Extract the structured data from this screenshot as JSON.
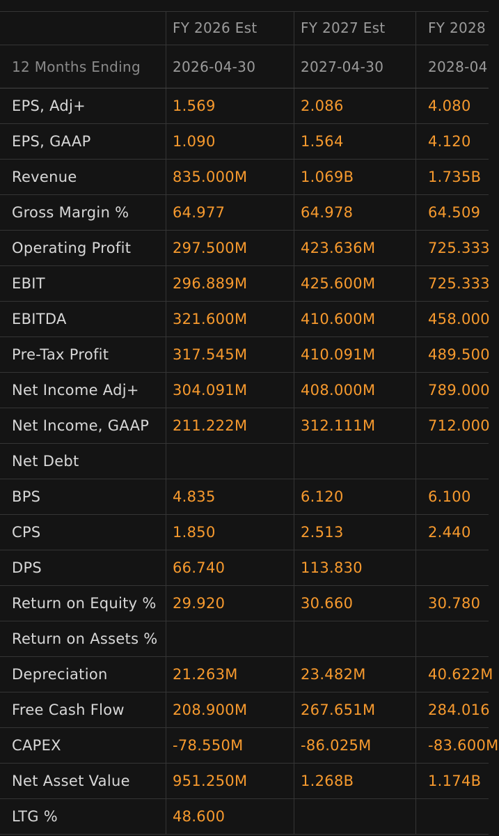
{
  "header": {
    "period_label": "",
    "columns": [
      "FY 2026 Est",
      "FY 2027 Est",
      "FY 2028"
    ],
    "ending_label": "12 Months Ending",
    "ending_dates": [
      "2026-04-30",
      "2027-04-30",
      "2028-04"
    ]
  },
  "rows": [
    {
      "label": "EPS, Adj+",
      "values": [
        "1.569",
        "2.086",
        "4.080"
      ]
    },
    {
      "label": "EPS, GAAP",
      "values": [
        "1.090",
        "1.564",
        "4.120"
      ]
    },
    {
      "label": "Revenue",
      "values": [
        "835.000M",
        "1.069B",
        "1.735B"
      ]
    },
    {
      "label": "Gross Margin %",
      "values": [
        "64.977",
        "64.978",
        "64.509"
      ]
    },
    {
      "label": "Operating Profit",
      "values": [
        "297.500M",
        "423.636M",
        "725.333"
      ]
    },
    {
      "label": "EBIT",
      "values": [
        "296.889M",
        "425.600M",
        "725.333"
      ]
    },
    {
      "label": "EBITDA",
      "values": [
        "321.600M",
        "410.600M",
        "458.000"
      ]
    },
    {
      "label": "Pre-Tax Profit",
      "values": [
        "317.545M",
        "410.091M",
        "489.500"
      ]
    },
    {
      "label": "Net Income Adj+",
      "values": [
        "304.091M",
        "408.000M",
        "789.000"
      ]
    },
    {
      "label": "Net Income, GAAP",
      "values": [
        "211.222M",
        "312.111M",
        "712.000"
      ]
    },
    {
      "label": "Net Debt",
      "values": [
        "",
        "",
        ""
      ]
    },
    {
      "label": "BPS",
      "values": [
        "4.835",
        "6.120",
        "6.100"
      ]
    },
    {
      "label": "CPS",
      "values": [
        "1.850",
        "2.513",
        "2.440"
      ]
    },
    {
      "label": "DPS",
      "values": [
        "66.740",
        "113.830",
        ""
      ]
    },
    {
      "label": "Return on Equity %",
      "values": [
        "29.920",
        "30.660",
        "30.780"
      ]
    },
    {
      "label": "Return on Assets %",
      "values": [
        "",
        "",
        ""
      ]
    },
    {
      "label": "Depreciation",
      "values": [
        "21.263M",
        "23.482M",
        "40.622M"
      ]
    },
    {
      "label": "Free Cash Flow",
      "values": [
        "208.900M",
        "267.651M",
        "284.016"
      ]
    },
    {
      "label": "CAPEX",
      "values": [
        "-78.550M",
        "-86.025M",
        "-83.600M"
      ]
    },
    {
      "label": "Net Asset Value",
      "values": [
        "951.250M",
        "1.268B",
        "1.174B"
      ]
    },
    {
      "label": "LTG %",
      "values": [
        "48.600",
        "",
        ""
      ]
    }
  ],
  "colors": {
    "background": "#141414",
    "value_text": "#f79a2e",
    "label_text": "#d8d8d8",
    "header_text": "#9b9b9b",
    "grid_line": "#353535"
  }
}
